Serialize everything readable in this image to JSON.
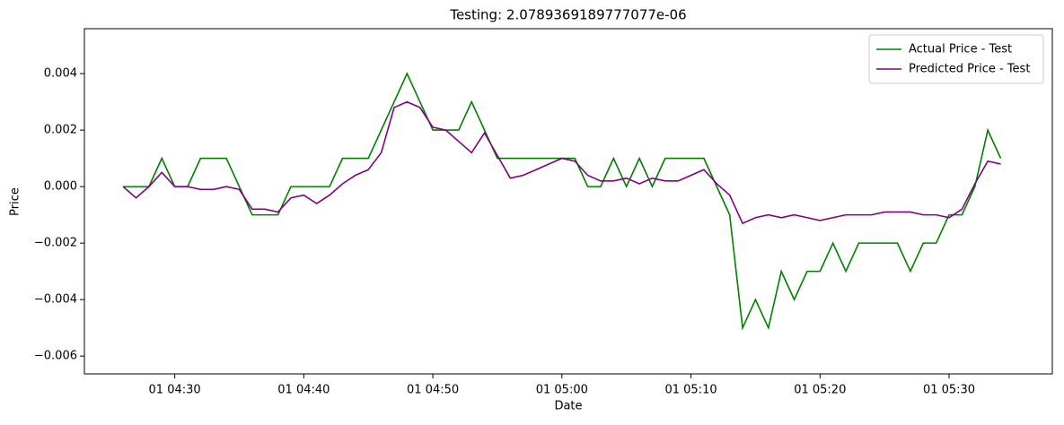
{
  "chart_data": {
    "type": "line",
    "title": "Testing: 2.0789369189777077e-06",
    "xlabel": "Date",
    "ylabel": "Price",
    "x": [
      "01 04:26",
      "01 04:27",
      "01 04:28",
      "01 04:29",
      "01 04:30",
      "01 04:31",
      "01 04:32",
      "01 04:33",
      "01 04:34",
      "01 04:35",
      "01 04:36",
      "01 04:37",
      "01 04:38",
      "01 04:39",
      "01 04:40",
      "01 04:41",
      "01 04:42",
      "01 04:43",
      "01 04:44",
      "01 04:45",
      "01 04:46",
      "01 04:47",
      "01 04:48",
      "01 04:49",
      "01 04:50",
      "01 04:51",
      "01 04:52",
      "01 04:53",
      "01 04:54",
      "01 04:55",
      "01 04:56",
      "01 04:57",
      "01 04:58",
      "01 04:59",
      "01 05:00",
      "01 05:01",
      "01 05:02",
      "01 05:03",
      "01 05:04",
      "01 05:05",
      "01 05:06",
      "01 05:07",
      "01 05:08",
      "01 05:09",
      "01 05:10",
      "01 05:11",
      "01 05:12",
      "01 05:13",
      "01 05:14",
      "01 05:15",
      "01 05:16",
      "01 05:17",
      "01 05:18",
      "01 05:19",
      "01 05:20",
      "01 05:21",
      "01 05:22",
      "01 05:23",
      "01 05:24",
      "01 05:25",
      "01 05:26",
      "01 05:27",
      "01 05:28",
      "01 05:29",
      "01 05:30",
      "01 05:31",
      "01 05:32",
      "01 05:33",
      "01 05:34"
    ],
    "series": [
      {
        "name": "Actual Price - Test",
        "color": "#008000",
        "values": [
          0,
          0,
          0,
          0.001,
          0,
          0,
          0.001,
          0.001,
          0.001,
          0,
          -0.001,
          -0.001,
          -0.001,
          0,
          0,
          0,
          0,
          0.001,
          0.001,
          0.001,
          0.002,
          0.003,
          0.004,
          0.003,
          0.002,
          0.002,
          0.002,
          0.003,
          0.002,
          0.001,
          0.001,
          0.001,
          0.001,
          0.001,
          0.001,
          0.001,
          0,
          0,
          0.001,
          0,
          0.001,
          0,
          0.001,
          0.001,
          0.001,
          0.001,
          0,
          -0.001,
          -0.005,
          -0.004,
          -0.005,
          -0.003,
          -0.004,
          -0.003,
          -0.003,
          -0.002,
          -0.003,
          -0.002,
          -0.002,
          -0.002,
          -0.002,
          -0.003,
          -0.002,
          -0.002,
          -0.001,
          -0.001,
          0,
          0.002,
          0.001
        ]
      },
      {
        "name": "Predicted Price - Test",
        "color": "#800080",
        "values": [
          0,
          -0.0004,
          0,
          0.0005,
          0,
          0,
          -0.0001,
          -0.0001,
          0,
          -0.0001,
          -0.0008,
          -0.0008,
          -0.0009,
          -0.0004,
          -0.0003,
          -0.0006,
          -0.0003,
          0.0001,
          0.0004,
          0.0006,
          0.0012,
          0.0028,
          0.003,
          0.0028,
          0.0021,
          0.002,
          0.0016,
          0.0012,
          0.0019,
          0.0011,
          0.0003,
          0.0004,
          0.0006,
          0.0008,
          0.001,
          0.0009,
          0.0004,
          0.0002,
          0.0002,
          0.0003,
          0.0001,
          0.0003,
          0.0002,
          0.0002,
          0.0004,
          0.0006,
          0.0001,
          -0.0003,
          -0.0013,
          -0.0011,
          -0.001,
          -0.0011,
          -0.001,
          -0.0011,
          -0.0012,
          -0.0011,
          -0.001,
          -0.001,
          -0.001,
          -0.0009,
          -0.0009,
          -0.0009,
          -0.001,
          -0.001,
          -0.0011,
          -0.0008,
          0.0001,
          0.0009,
          0.0008
        ]
      }
    ],
    "xlim": [
      "01 04:23",
      "01 05:38"
    ],
    "xticks": [
      "01 04:30",
      "01 04:40",
      "01 04:50",
      "01 05:00",
      "01 05:10",
      "01 05:20",
      "01 05:30"
    ],
    "ylim": [
      -0.00663,
      0.00559
    ],
    "yticks": [
      {
        "value": -0.006,
        "label": "−0.006"
      },
      {
        "value": -0.004,
        "label": "−0.004"
      },
      {
        "value": -0.002,
        "label": "−0.002"
      },
      {
        "value": 0,
        "label": "0.000"
      },
      {
        "value": 0.002,
        "label": "0.002"
      },
      {
        "value": 0.004,
        "label": "0.004"
      }
    ],
    "legend": "upper right"
  }
}
